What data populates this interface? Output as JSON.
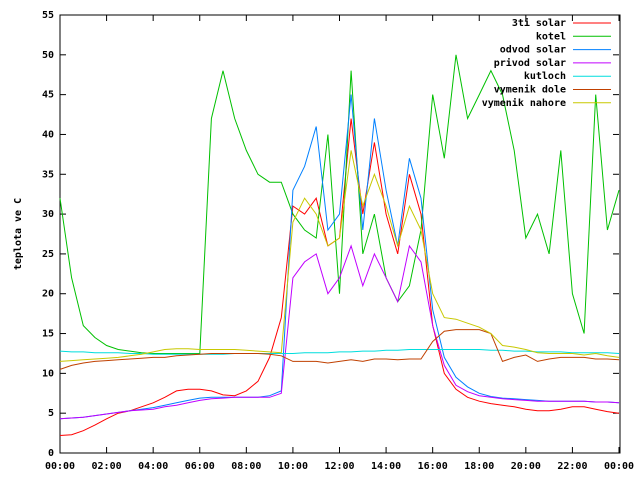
{
  "chart_data": {
    "type": "line",
    "y_label": "teplota ve C",
    "categories": [
      "00:00",
      null,
      null,
      null,
      "02:00",
      null,
      null,
      null,
      "04:00",
      null,
      null,
      null,
      "06:00",
      null,
      null,
      null,
      "08:00",
      null,
      null,
      null,
      "10:00",
      null,
      null,
      null,
      "12:00",
      null,
      null,
      null,
      "14:00",
      null,
      null,
      null,
      "16:00",
      null,
      null,
      null,
      "18:00",
      null,
      null,
      null,
      "20:00",
      null,
      null,
      null,
      "22:00",
      null,
      null,
      null,
      "00:00"
    ],
    "ylim": [
      0,
      55
    ],
    "yticks": [
      0,
      5,
      10,
      15,
      20,
      25,
      30,
      35,
      40,
      45,
      50,
      55
    ],
    "grid": false,
    "legend": "top-right",
    "series": [
      {
        "name": "3ti solar",
        "color": "#ff0000",
        "values": [
          2.2,
          2.3,
          2.8,
          3.5,
          4.3,
          5,
          5.3,
          5.8,
          6.3,
          7,
          7.8,
          8,
          8,
          7.8,
          7.3,
          7.2,
          7.8,
          9,
          12,
          17,
          31,
          30,
          32,
          26,
          27,
          42,
          30,
          39,
          30,
          25,
          35,
          30,
          16,
          10,
          8,
          7,
          6.5,
          6.2,
          6,
          5.8,
          5.5,
          5.3,
          5.3,
          5.5,
          5.8,
          5.8,
          5.5,
          5.2,
          5
        ]
      },
      {
        "name": "kotel",
        "color": "#00c000",
        "values": [
          32,
          22,
          16,
          14.5,
          13.5,
          13,
          12.8,
          12.6,
          12.5,
          12.5,
          12.5,
          12.5,
          12.5,
          42,
          48,
          42,
          38,
          35,
          34,
          34,
          30,
          28,
          27,
          40,
          20,
          48,
          25,
          30,
          22,
          19,
          21,
          28,
          45,
          37,
          50,
          42,
          45,
          48,
          45,
          38,
          27,
          30,
          25,
          38,
          20,
          15,
          45,
          28,
          33
        ]
      },
      {
        "name": "odvod solar",
        "color": "#0080ff",
        "values": [
          4.3,
          4.4,
          4.5,
          4.7,
          4.9,
          5.1,
          5.3,
          5.5,
          5.7,
          6,
          6.3,
          6.6,
          6.9,
          7,
          7,
          7,
          7,
          7,
          7.2,
          7.8,
          33,
          36,
          41,
          28,
          30,
          45,
          28,
          42,
          33,
          26,
          37,
          32,
          18,
          12,
          9.5,
          8.3,
          7.5,
          7.1,
          6.9,
          6.8,
          6.7,
          6.6,
          6.5,
          6.5,
          6.5,
          6.5,
          6.4,
          6.4,
          6.3
        ]
      },
      {
        "name": "privod solar",
        "color": "#c000ff",
        "values": [
          4.3,
          4.4,
          4.5,
          4.7,
          4.9,
          5.1,
          5.3,
          5.4,
          5.5,
          5.8,
          6,
          6.3,
          6.6,
          6.8,
          6.9,
          7,
          7,
          7,
          7,
          7.5,
          22,
          24,
          25,
          20,
          22,
          26,
          21,
          25,
          22,
          19,
          26,
          24,
          16,
          11,
          8.5,
          7.7,
          7.2,
          7,
          6.8,
          6.7,
          6.6,
          6.5,
          6.5,
          6.5,
          6.5,
          6.5,
          6.4,
          6.4,
          6.3
        ]
      },
      {
        "name": "kutloch",
        "color": "#00dddd",
        "values": [
          12.8,
          12.7,
          12.7,
          12.6,
          12.6,
          12.6,
          12.5,
          12.5,
          12.4,
          12.4,
          12.4,
          12.4,
          12.4,
          12.4,
          12.4,
          12.5,
          12.5,
          12.5,
          12.5,
          12.5,
          12.5,
          12.6,
          12.6,
          12.6,
          12.7,
          12.7,
          12.8,
          12.8,
          12.9,
          12.9,
          13,
          13,
          13,
          13,
          13,
          13,
          13,
          12.9,
          12.9,
          12.8,
          12.8,
          12.7,
          12.7,
          12.7,
          12.6,
          12.6,
          12.6,
          12.6,
          12.5
        ]
      },
      {
        "name": "vymenik dole",
        "color": "#c04000",
        "values": [
          10.5,
          11,
          11.3,
          11.5,
          11.6,
          11.7,
          11.8,
          11.9,
          12,
          12,
          12.2,
          12.3,
          12.4,
          12.5,
          12.5,
          12.5,
          12.5,
          12.5,
          12.4,
          12.2,
          11.5,
          11.5,
          11.5,
          11.3,
          11.5,
          11.7,
          11.5,
          11.8,
          11.8,
          11.7,
          11.8,
          11.8,
          14,
          15.3,
          15.5,
          15.5,
          15.5,
          15,
          11.5,
          12,
          12.3,
          11.5,
          11.8,
          12,
          12,
          12,
          11.8,
          11.8,
          11.7
        ]
      },
      {
        "name": "vymenik nahore",
        "color": "#c8c800",
        "values": [
          11.5,
          11.6,
          11.7,
          11.8,
          11.9,
          12,
          12.2,
          12.4,
          12.7,
          13,
          13.1,
          13.1,
          13,
          13,
          13,
          13,
          12.9,
          12.8,
          12.7,
          12.6,
          29,
          32,
          30,
          26,
          27,
          38,
          31,
          35,
          31,
          26,
          31,
          28,
          20,
          17,
          16.8,
          16.3,
          15.8,
          15,
          13.5,
          13.3,
          13,
          12.6,
          12.5,
          12.5,
          12.5,
          12.3,
          12.5,
          12.2,
          12
        ]
      }
    ]
  }
}
